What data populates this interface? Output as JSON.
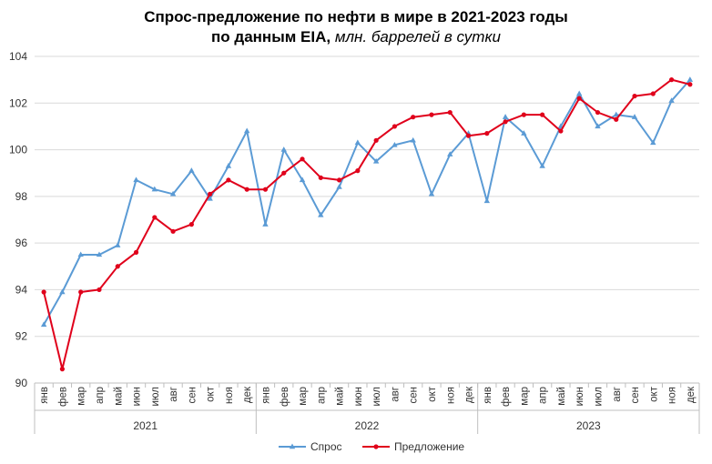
{
  "title_line1": "Спрос-предложение по нефти в мире в 2021-2023 годы",
  "title_line2_bold": "по данным EIA,",
  "title_line2_italic": "млн. баррелей в сутки",
  "colors": {
    "demand": "#5B9BD5",
    "supply": "#E0001B",
    "grid": "#D9D9D9",
    "axis": "#BFBFBF"
  },
  "chart_data": {
    "type": "line",
    "ylim": [
      90,
      104
    ],
    "yticks": [
      90,
      92,
      94,
      96,
      98,
      100,
      102,
      104
    ],
    "grid": true,
    "legend_position": "bottom",
    "years": [
      {
        "label": "2021",
        "months": 12
      },
      {
        "label": "2022",
        "months": 12
      },
      {
        "label": "2023",
        "months": 12
      }
    ],
    "categories": [
      "янв",
      "фев",
      "мар",
      "апр",
      "май",
      "июн",
      "июл",
      "авг",
      "сен",
      "окт",
      "ноя",
      "дек",
      "янв",
      "фев",
      "мар",
      "апр",
      "май",
      "июн",
      "июл",
      "авг",
      "сен",
      "окт",
      "ноя",
      "дек",
      "янв",
      "фев",
      "мар",
      "апр",
      "май",
      "июн",
      "июл",
      "авг",
      "сен",
      "окт",
      "ноя",
      "дек"
    ],
    "series": [
      {
        "name": "Спрос",
        "marker": "triangle",
        "values": [
          92.5,
          93.9,
          95.5,
          95.5,
          95.9,
          98.7,
          98.3,
          98.1,
          99.1,
          97.9,
          99.3,
          100.8,
          96.8,
          100.0,
          98.7,
          97.2,
          98.4,
          100.3,
          99.5,
          100.2,
          100.4,
          98.1,
          99.8,
          100.7,
          97.8,
          101.4,
          100.7,
          99.3,
          101.0,
          102.4,
          101.0,
          101.5,
          101.4,
          100.3,
          102.1,
          103.0
        ]
      },
      {
        "name": "Предложение",
        "marker": "circle",
        "values": [
          93.9,
          90.6,
          93.9,
          94.0,
          95.0,
          95.6,
          97.1,
          96.5,
          96.8,
          98.1,
          98.7,
          98.3,
          98.3,
          99.0,
          99.6,
          98.8,
          98.7,
          99.1,
          100.4,
          101.0,
          101.4,
          101.5,
          101.6,
          100.6,
          100.7,
          101.2,
          101.5,
          101.5,
          100.8,
          102.2,
          101.6,
          101.3,
          102.3,
          102.4,
          103.0,
          102.8
        ]
      }
    ]
  }
}
